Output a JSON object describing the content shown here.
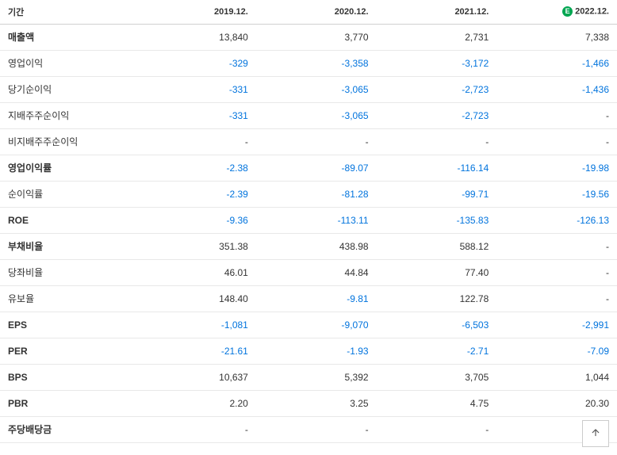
{
  "table": {
    "header_label": "기간",
    "periods": [
      "2019.12.",
      "2020.12.",
      "2021.12.",
      "2022.12."
    ],
    "estimate_col_index": 3,
    "estimate_badge": "E",
    "colors": {
      "negative": "#0073dd",
      "positive": "#333333",
      "border": "#e8e8e8",
      "header_border": "#d0d0d0",
      "estimate_badge_bg": "#00a651",
      "estimate_badge_fg": "#ffffff",
      "background": "#ffffff"
    },
    "col_widths": [
      "22%",
      "19.5%",
      "19.5%",
      "19.5%",
      "19.5%"
    ],
    "rows": [
      {
        "label": "매출액",
        "bold": true,
        "values": [
          "13,840",
          "3,770",
          "2,731",
          "7,338"
        ],
        "neg": [
          false,
          false,
          false,
          false
        ]
      },
      {
        "label": "영업이익",
        "bold": false,
        "values": [
          "-329",
          "-3,358",
          "-3,172",
          "-1,466"
        ],
        "neg": [
          true,
          true,
          true,
          true
        ]
      },
      {
        "label": "당기순이익",
        "bold": false,
        "values": [
          "-331",
          "-3,065",
          "-2,723",
          "-1,436"
        ],
        "neg": [
          true,
          true,
          true,
          true
        ]
      },
      {
        "label": "지배주주순이익",
        "bold": false,
        "values": [
          "-331",
          "-3,065",
          "-2,723",
          "-"
        ],
        "neg": [
          true,
          true,
          true,
          false
        ]
      },
      {
        "label": "비지배주주순이익",
        "bold": false,
        "values": [
          "-",
          "-",
          "-",
          "-"
        ],
        "neg": [
          false,
          false,
          false,
          false
        ]
      },
      {
        "label": "영업이익률",
        "bold": true,
        "values": [
          "-2.38",
          "-89.07",
          "-116.14",
          "-19.98"
        ],
        "neg": [
          true,
          true,
          true,
          true
        ]
      },
      {
        "label": "순이익률",
        "bold": false,
        "values": [
          "-2.39",
          "-81.28",
          "-99.71",
          "-19.56"
        ],
        "neg": [
          true,
          true,
          true,
          true
        ]
      },
      {
        "label": "ROE",
        "bold": true,
        "values": [
          "-9.36",
          "-113.11",
          "-135.83",
          "-126.13"
        ],
        "neg": [
          true,
          true,
          true,
          true
        ]
      },
      {
        "label": "부채비율",
        "bold": true,
        "values": [
          "351.38",
          "438.98",
          "588.12",
          "-"
        ],
        "neg": [
          false,
          false,
          false,
          false
        ]
      },
      {
        "label": "당좌비율",
        "bold": false,
        "values": [
          "46.01",
          "44.84",
          "77.40",
          "-"
        ],
        "neg": [
          false,
          false,
          false,
          false
        ]
      },
      {
        "label": "유보율",
        "bold": false,
        "values": [
          "148.40",
          "-9.81",
          "122.78",
          "-"
        ],
        "neg": [
          false,
          true,
          false,
          false
        ]
      },
      {
        "label": "EPS",
        "bold": true,
        "values": [
          "-1,081",
          "-9,070",
          "-6,503",
          "-2,991"
        ],
        "neg": [
          true,
          true,
          true,
          true
        ]
      },
      {
        "label": "PER",
        "bold": true,
        "values": [
          "-21.61",
          "-1.93",
          "-2.71",
          "-7.09"
        ],
        "neg": [
          true,
          true,
          true,
          true
        ]
      },
      {
        "label": "BPS",
        "bold": true,
        "values": [
          "10,637",
          "5,392",
          "3,705",
          "1,044"
        ],
        "neg": [
          false,
          false,
          false,
          false
        ]
      },
      {
        "label": "PBR",
        "bold": true,
        "values": [
          "2.20",
          "3.25",
          "4.75",
          "20.30"
        ],
        "neg": [
          false,
          false,
          false,
          false
        ]
      },
      {
        "label": "주당배당금",
        "bold": true,
        "values": [
          "-",
          "-",
          "-",
          "-"
        ],
        "neg": [
          false,
          false,
          false,
          false
        ]
      }
    ]
  },
  "scroll_top": {
    "title": "맨 위로"
  }
}
